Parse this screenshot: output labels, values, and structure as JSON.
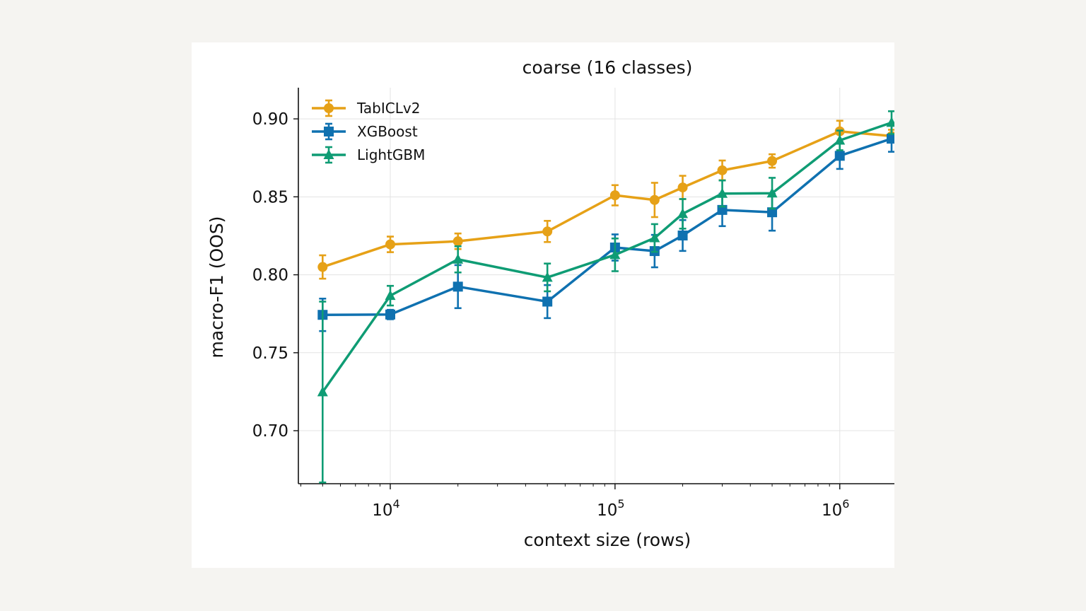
{
  "chart_data": {
    "type": "line",
    "title": "coarse (16 classes)",
    "xlabel": "context size (rows)",
    "ylabel": "macro-F1 (OOS)",
    "x_scale": "log",
    "xlim": [
      3900,
      1750000
    ],
    "ylim": [
      0.666,
      0.92
    ],
    "grid": true,
    "legend_position": "top-left",
    "x_ticks": [
      {
        "value": 10000,
        "base": "10",
        "exp": "4"
      },
      {
        "value": 100000,
        "base": "10",
        "exp": "5"
      },
      {
        "value": 1000000,
        "base": "10",
        "exp": "6"
      }
    ],
    "y_ticks": [
      {
        "value": 0.7,
        "label": "0.70"
      },
      {
        "value": 0.75,
        "label": "0.75"
      },
      {
        "value": 0.8,
        "label": "0.80"
      },
      {
        "value": 0.85,
        "label": "0.85"
      },
      {
        "value": 0.9,
        "label": "0.90"
      }
    ],
    "x": [
      5000,
      10000,
      20000,
      50000,
      100000,
      150000,
      200000,
      300000,
      500000,
      1000000,
      1700000
    ],
    "series": [
      {
        "name": "TabICLv2",
        "color": "#e6a117",
        "marker": "circle",
        "values": [
          0.805,
          0.8195,
          0.8215,
          0.8278,
          0.851,
          0.848,
          0.856,
          0.867,
          0.873,
          0.892,
          0.889
        ],
        "errors": [
          0.0075,
          0.005,
          0.005,
          0.0068,
          0.0065,
          0.011,
          0.0075,
          0.0063,
          0.0043,
          0.0068,
          0.004
        ]
      },
      {
        "name": "XGBoost",
        "color": "#0f71b0",
        "marker": "square",
        "values": [
          0.7743,
          0.7745,
          0.7924,
          0.7828,
          0.8175,
          0.8152,
          0.8252,
          0.8416,
          0.8401,
          0.8763,
          0.8873
        ],
        "errors": [
          0.0104,
          0.003,
          0.0138,
          0.0106,
          0.0084,
          0.0104,
          0.0099,
          0.0104,
          0.0118,
          0.0084,
          0.0084
        ]
      },
      {
        "name": "LightGBM",
        "color": "#0f9c74",
        "marker": "triangle",
        "values": [
          0.7248,
          0.7866,
          0.8099,
          0.7983,
          0.8128,
          0.8236,
          0.8391,
          0.8521,
          0.8523,
          0.8862,
          0.8976
        ],
        "errors": [
          0.058,
          0.0063,
          0.0084,
          0.0089,
          0.0105,
          0.0089,
          0.0095,
          0.0084,
          0.0099,
          0.0063,
          0.0073
        ]
      }
    ]
  }
}
